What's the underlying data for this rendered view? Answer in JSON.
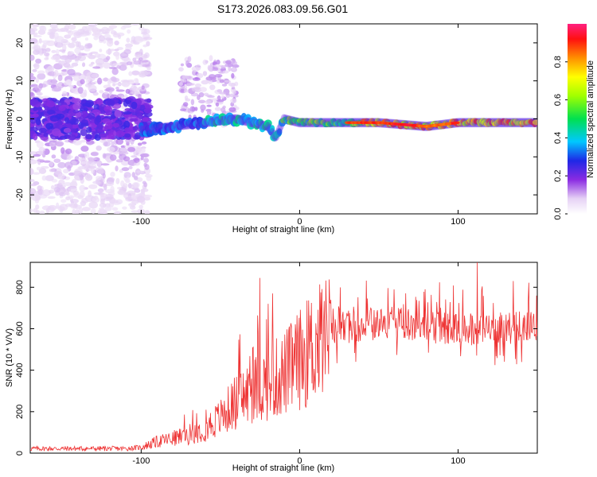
{
  "title": "S173.2026.083.09.56.G01",
  "chart_data": [
    {
      "type": "heatmap",
      "name": "spectrogram",
      "xlabel": "Height of straight line (km)",
      "ylabel": "Frequency (Hz)",
      "xlim": [
        -170,
        150
      ],
      "ylim": [
        -25,
        25
      ],
      "xticks": [
        -100,
        0,
        100
      ],
      "yticks": [
        -20,
        -10,
        0,
        10,
        20
      ],
      "colorbar": {
        "label": "Normalized spectral amplitude",
        "range": [
          0,
          1
        ],
        "ticks": [
          0.0,
          0.2,
          0.4,
          0.6,
          0.8
        ],
        "tick_labels": [
          "0.0",
          "0.2",
          "0.4",
          "0.6",
          "0.8"
        ]
      },
      "ridge": {
        "description_free": true,
        "x": [
          -100,
          -80,
          -60,
          -40,
          -20,
          -15,
          -10,
          0,
          20,
          50,
          80,
          100,
          150
        ],
        "frequency": [
          -3,
          -2,
          -1,
          0,
          -2,
          -5,
          0,
          -1,
          -1,
          -1,
          -2,
          -1,
          -1
        ]
      }
    },
    {
      "type": "line",
      "name": "snr",
      "xlabel": "Height of straight line (km)",
      "ylabel": "SNR (10 * V/V)",
      "xlim": [
        -170,
        150
      ],
      "ylim": [
        0,
        920
      ],
      "xticks": [
        -100,
        0,
        100
      ],
      "yticks": [
        0,
        200,
        400,
        600,
        800
      ],
      "series": [
        {
          "name": "SNR",
          "color": "#ee3333",
          "envelope_x": [
            -170,
            -110,
            -100,
            -90,
            -80,
            -70,
            -60,
            -50,
            -40,
            -30,
            -20,
            -10,
            0,
            10,
            20,
            30,
            40,
            60,
            80,
            100,
            120,
            140,
            150
          ],
          "envelope_mean": [
            22,
            22,
            28,
            55,
            70,
            90,
            120,
            170,
            250,
            300,
            340,
            380,
            450,
            520,
            580,
            610,
            620,
            630,
            610,
            600,
            600,
            610,
            600
          ],
          "peaks": [
            [
              -25,
              845
            ],
            [
              -20,
              720
            ],
            [
              -17,
              770
            ],
            [
              112,
              920
            ],
            [
              135,
              830
            ]
          ]
        }
      ]
    }
  ]
}
